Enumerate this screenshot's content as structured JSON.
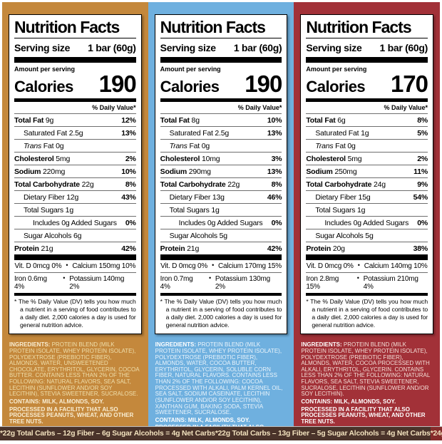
{
  "shared": {
    "title": "Nutrition Facts",
    "serving_label": "Serving size",
    "serving_value": "1 bar (60g)",
    "amount_per_serving": "Amount per serving",
    "calories_label": "Calories",
    "daily_value_header": "% Daily Value*",
    "bullet": "•",
    "ingredients_label": "INGREDIENTS:",
    "footnote": "* The % Daily Value (DV) tells you how much a nutrient in a serving of food contributes to a daily diet. 2,000 calories a day is used for general nutrition advice."
  },
  "panels": [
    {
      "colors": {
        "bg": "#C4883C",
        "ink": "#EFDFAC",
        "ink_strong": "#F9EED3",
        "strip_bg": "#4A332A",
        "strip_text": "#F2E2BE"
      },
      "calories": "190",
      "rows": [
        {
          "b": "Total Fat",
          "r": " 9g",
          "dv": "12%"
        },
        {
          "r": "Saturated Fat 2.5g",
          "dv": "13%"
        },
        {
          "i": "Trans",
          "r": " Fat 0g",
          "dv": ""
        },
        {
          "b": "Cholesterol",
          "r": " 5mg",
          "dv": "2%"
        },
        {
          "b": "Sodium",
          "r": " 220mg",
          "dv": "10%"
        },
        {
          "b": "Total Carbohydrate",
          "r": " 22g",
          "dv": "8%"
        },
        {
          "r": "Dietary Fiber 12g",
          "dv": "43%"
        },
        {
          "r": "Total Sugars 1g",
          "dv": ""
        },
        {
          "r": "Includes 0g Added Sugars",
          "dv": "0%"
        },
        {
          "r": "Sugar Alcohols 6g",
          "dv": ""
        },
        {
          "b": "Protein",
          "r": " 21g",
          "dv": "42%"
        }
      ],
      "vitamins": [
        {
          "left": "Vit. D 0mcg 0%",
          "right": "Calcium 150mg 10%"
        },
        {
          "left": "Iron 0.6mg 4%",
          "right": "Potassium 140mg 2%"
        }
      ],
      "ingredients": "PROTEIN BLEND (MILK PROTEIN ISOLATE, WHEY PROTEIN ISOLATE), POLYDEXTROSE (PREBIOTIC FIBER), ALMONDS, WATER, UNSWEETENED CHOCOLATE, ERYTHRITOL, GLYCERIN, COCOA BUTTER. CONTAINS LESS THAN 2% OF THE FOLLOWING: NATURAL FLAVORS, SEA SALT, LECITHIN (SUNFLOWER AND/OR SOY LECITHIN), STEVIA SWEETENER, SUCRALOSE.",
      "contains": "CONTAINS: MILK, ALMONDS, SOY.",
      "facility": "PROCESSED IN A FACILITY THAT ALSO PROCESSES PEANUTS, WHEAT, AND OTHER TREE NUTS.",
      "bioengineered": "CONTAINS A BIOENGINEERED FOOD INGREDIENT.",
      "net_carbs": "*22g Total Carbs – 12g Fiber – 6g Sugar Alcohols = 4g Net Carbs"
    },
    {
      "colors": {
        "bg": "#6FB0DF",
        "ink": "#EAF4FB",
        "ink_strong": "#FFFFFF",
        "strip_bg": "#4A332A",
        "strip_text": "#F2E2BE"
      },
      "calories": "190",
      "rows": [
        {
          "b": "Total Fat",
          "r": " 8g",
          "dv": "10%"
        },
        {
          "r": "Saturated Fat 2.5g",
          "dv": "13%"
        },
        {
          "i": "Trans",
          "r": " Fat 0g",
          "dv": ""
        },
        {
          "b": "Cholesterol",
          "r": " 10mg",
          "dv": "3%"
        },
        {
          "b": "Sodium",
          "r": " 290mg",
          "dv": "13%"
        },
        {
          "b": "Total Carbohydrate",
          "r": " 22g",
          "dv": "8%"
        },
        {
          "r": "Dietary Fiber 13g",
          "dv": "46%"
        },
        {
          "r": "Total Sugars 1g",
          "dv": ""
        },
        {
          "r": "Includes 0g Added Sugars",
          "dv": "0%"
        },
        {
          "r": "Sugar Alcohols 5g",
          "dv": ""
        },
        {
          "b": "Protein",
          "r": " 21g",
          "dv": "42%"
        }
      ],
      "vitamins": [
        {
          "left": "Vit. D 0mcg 0%",
          "right": "Calcium 170mg 15%"
        },
        {
          "left": "Iron 0.7mg 4%",
          "right": "Potassium 130mg 2%"
        }
      ],
      "ingredients": "PROTEIN BLEND (MILK PROTEIN ISOLATE, WHEY PROTEIN ISOLATE), POLYDEXTROSE (PREBIOTIC FIBER), ALMONDS, WATER, COCOA BUTTER, ERYTHRITOL, GLYCERIN, SOLUBLE CORN FIBER, NATURAL FLAVORS. CONTAINS LESS THAN 2% OF THE FOLLOWING: COCOA PROCESSED WITH ALKALI, PALM KERNEL OIL, SEA SALT, SODIUM CASEINATE, LECITHIN (SUNFLOWER AND/OR SOY LECITHIN), XANTHAN GUM, BAKING SODA, STEVIA SWEETENER, SUCRALOSE.",
      "contains": "CONTAINS: MILK, ALMONDS, SOY.",
      "facility": "PROCESSED IN A FACILITY THAT ALSO PROCESSES PEANUTS, WHEAT, AND OTHER TREE NUTS.",
      "bioengineered": "CONTAINS A BIOENGINEERED FOOD INGREDIENT.",
      "net_carbs": "*22g Total Carbs – 13g Fiber – 5g Sugar Alcohols = 4g Net Carbs"
    },
    {
      "colors": {
        "bg": "#A23138",
        "ink": "#F3DDD6",
        "ink_strong": "#FFFFFF",
        "strip_bg": "#862B2B",
        "strip_text": "#F2E2BE"
      },
      "calories": "170",
      "rows": [
        {
          "b": "Total Fat",
          "r": " 6g",
          "dv": "8%"
        },
        {
          "r": "Saturated Fat 1g",
          "dv": "5%"
        },
        {
          "i": "Trans",
          "r": " Fat 0g",
          "dv": ""
        },
        {
          "b": "Cholesterol",
          "r": " 5mg",
          "dv": "2%"
        },
        {
          "b": "Sodium",
          "r": " 250mg",
          "dv": "11%"
        },
        {
          "b": "Total Carbohydrate",
          "r": " 24g",
          "dv": "9%"
        },
        {
          "r": "Dietary Fiber 15g",
          "dv": "54%"
        },
        {
          "r": "Total Sugars 1g",
          "dv": ""
        },
        {
          "r": "Includes 0g Added Sugars",
          "dv": "0%"
        },
        {
          "r": "Sugar Alcohols 5g",
          "dv": ""
        },
        {
          "b": "Protein",
          "r": " 20g",
          "dv": "38%"
        }
      ],
      "vitamins": [
        {
          "left": "Vit. D 0mcg 0%",
          "right": "Calcium 140mg 10%"
        },
        {
          "left": "Iron 2.8mg 15%",
          "right": "Potassium 210mg 4%"
        }
      ],
      "ingredients": "PROTEIN BLEND (MILK PROTEIN ISOLATE, WHEY PROTEIN ISOLATE), POLYDEXTROSE (PREBIOTIC FIBER), ALMONDS, WATER, COCOA PROCESSED WITH ALKALI, ERYTHRITOL, GLYCERIN. CONTAINS LESS THAN 2% OF THE FOLLOWING: NATURAL FLAVORS, SEA SALT, STEVIA SWEETENER, SUCRALOSE, LECITHIN (SUNFLOWER AND/OR SOY LECITHIN).",
      "contains": "CONTAINS: MILK, ALMONDS, SOY.",
      "facility": "PROCESSED IN A FACILITY THAT ALSO PROCESSES PEANUTS, WHEAT, AND OTHER TREE NUTS.",
      "bioengineered": "",
      "net_carbs": "*24g Total Carbs – 15g Fiber – 5g Sugar Alcohols = 4g Net Carbs"
    }
  ]
}
